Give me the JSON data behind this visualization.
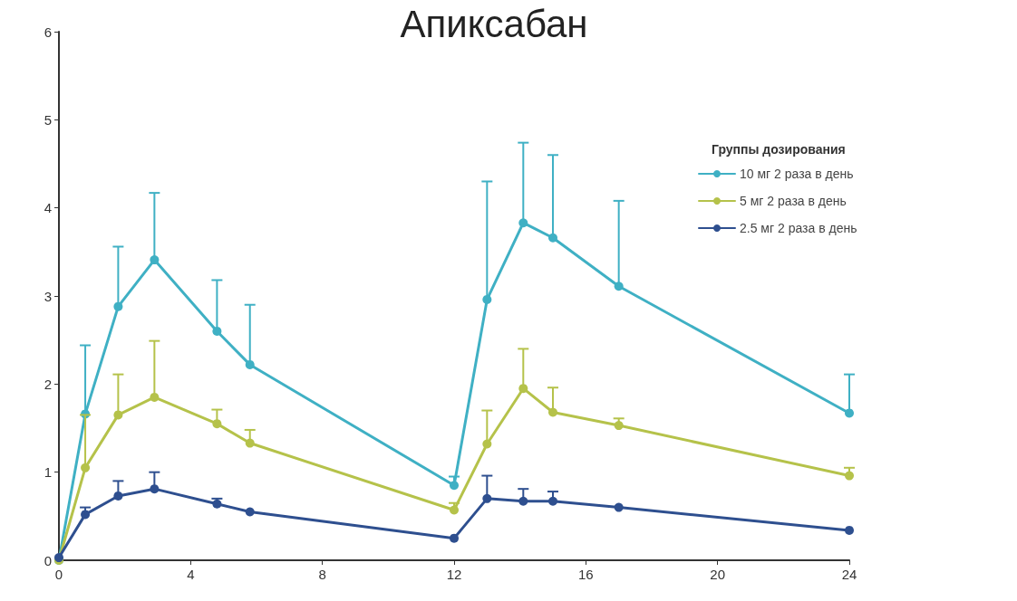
{
  "chart_data": {
    "type": "line",
    "title": "Апиксабан",
    "legend_title": "Группы дозирования",
    "xlim": [
      0,
      24
    ],
    "xticks": [
      0,
      4,
      8,
      12,
      16,
      20,
      24
    ],
    "ylim": [
      0,
      6
    ],
    "yticks": [
      0,
      1,
      2,
      3,
      4,
      5,
      6
    ],
    "grid": false,
    "legend": "top right",
    "marker": "circle",
    "line_style": "solid",
    "x": [
      0,
      0.8,
      1.8,
      2.9,
      4.8,
      5.8,
      12,
      13,
      14.1,
      15,
      17,
      24
    ],
    "series": [
      {
        "name": "10 мг 2 раза в день",
        "color": "#3fb0c4",
        "values": [
          0,
          1.66,
          2.88,
          3.41,
          2.6,
          2.22,
          0.85,
          2.96,
          3.83,
          3.66,
          3.11,
          1.67
        ],
        "errors": [
          null,
          [
            1.66,
            2.44
          ],
          [
            2.88,
            3.56
          ],
          [
            3.41,
            4.17
          ],
          [
            2.6,
            3.18
          ],
          [
            2.22,
            2.9
          ],
          [
            0.85,
            0.95
          ],
          [
            2.96,
            4.3
          ],
          [
            3.83,
            4.74
          ],
          [
            3.66,
            4.6
          ],
          [
            3.11,
            4.08
          ],
          [
            1.67,
            2.11
          ]
        ]
      },
      {
        "name": "5 мг 2 раза в день",
        "color": "#b5c24a",
        "values": [
          0,
          1.05,
          1.65,
          1.85,
          1.55,
          1.33,
          0.57,
          1.32,
          1.95,
          1.68,
          1.53,
          0.96
        ],
        "errors": [
          null,
          [
            1.05,
            1.65
          ],
          [
            1.65,
            2.11
          ],
          [
            1.85,
            2.49
          ],
          [
            1.55,
            1.71
          ],
          [
            1.33,
            1.48
          ],
          [
            0.57,
            0.65
          ],
          [
            1.32,
            1.7
          ],
          [
            1.95,
            2.4
          ],
          [
            1.68,
            1.96
          ],
          [
            1.53,
            1.61
          ],
          [
            0.96,
            1.05
          ]
        ]
      },
      {
        "name": "2.5 мг 2 раза в день",
        "color": "#2e4f8f",
        "values": [
          0.03,
          0.52,
          0.73,
          0.81,
          0.64,
          0.55,
          0.25,
          0.7,
          0.67,
          0.67,
          0.6,
          0.34
        ],
        "errors": [
          null,
          [
            0.52,
            0.6
          ],
          [
            0.73,
            0.9
          ],
          [
            0.81,
            1.0
          ],
          [
            0.64,
            0.7
          ],
          null,
          null,
          [
            0.7,
            0.96
          ],
          [
            0.67,
            0.81
          ],
          [
            0.67,
            0.78
          ],
          null,
          null
        ]
      }
    ]
  }
}
